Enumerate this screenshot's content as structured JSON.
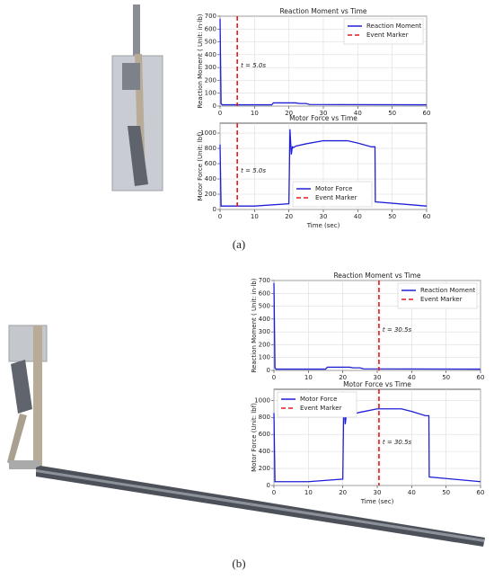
{
  "chart_data": [
    {
      "type": "line",
      "title": "Reaction Moment vs Time",
      "ylabel": "Reaction Moment ( Unit: in·lb)",
      "x": [
        0,
        0.3,
        0.6,
        15,
        15.5,
        22,
        23,
        25,
        26,
        60
      ],
      "series": [
        {
          "name": "Reaction Moment",
          "color": "#1f1fd6",
          "values": [
            680,
            20,
            10,
            10,
            25,
            25,
            20,
            20,
            12,
            10
          ]
        }
      ],
      "markers": [
        {
          "name": "Event Marker",
          "color": "#e41a1c",
          "x": 5.0,
          "annotation": "t = 5.0s"
        }
      ],
      "xlim": [
        0,
        60
      ],
      "xticks": [
        0,
        10,
        20,
        30,
        40,
        50,
        60
      ],
      "ylim": [
        0,
        700
      ],
      "yticks": [
        0,
        100,
        200,
        300,
        400,
        500,
        600,
        700
      ],
      "grid": true,
      "legend": "upper right"
    },
    {
      "type": "line",
      "title": "Motor Force vs Time",
      "xlabel": "Time (sec)",
      "ylabel": "Motor Force (Unit: lbf)",
      "x": [
        0,
        0.3,
        0.6,
        10,
        20,
        20.3,
        20.7,
        21,
        21.3,
        22,
        25,
        30,
        37,
        40,
        44,
        45,
        45.1,
        60
      ],
      "series": [
        {
          "name": "Motor Force",
          "color": "#1f1fd6",
          "values": [
            850,
            45,
            45,
            45,
            75,
            1050,
            720,
            820,
            810,
            830,
            860,
            900,
            900,
            870,
            820,
            820,
            100,
            45
          ]
        }
      ],
      "markers": [
        {
          "name": "Event Marker",
          "color": "#e41a1c",
          "x": 5.0,
          "annotation": "t = 5.0s"
        }
      ],
      "xlim": [
        0,
        60
      ],
      "xticks": [
        0,
        10,
        20,
        30,
        40,
        50,
        60
      ],
      "ylim": [
        0,
        1130
      ],
      "yticks": [
        0,
        200,
        400,
        600,
        800,
        1000
      ],
      "grid": true,
      "legend": "lower center"
    },
    {
      "type": "line",
      "title": "Reaction Moment vs Time",
      "ylabel": "Reaction Moment ( Unit: in·lb)",
      "x": [
        0,
        0.3,
        0.6,
        15,
        15.5,
        22,
        23,
        25,
        26,
        60
      ],
      "series": [
        {
          "name": "Reaction Moment",
          "color": "#1f1fd6",
          "values": [
            680,
            20,
            10,
            10,
            25,
            25,
            20,
            20,
            12,
            10
          ]
        }
      ],
      "markers": [
        {
          "name": "Event Marker",
          "color": "#e41a1c",
          "x": 30.5,
          "annotation": "t = 30.5s"
        }
      ],
      "xlim": [
        0,
        60
      ],
      "xticks": [
        0,
        10,
        20,
        30,
        40,
        50,
        60
      ],
      "ylim": [
        0,
        700
      ],
      "yticks": [
        0,
        100,
        200,
        300,
        400,
        500,
        600,
        700
      ],
      "grid": true,
      "legend": "upper right"
    },
    {
      "type": "line",
      "title": "Motor Force vs Time",
      "xlabel": "Time (sec)",
      "ylabel": "Motor Force (Unit: lbf)",
      "x": [
        0,
        0.3,
        0.6,
        10,
        20,
        20.3,
        20.7,
        21,
        21.3,
        22,
        25,
        30,
        37,
        40,
        44,
        45,
        45.1,
        60
      ],
      "series": [
        {
          "name": "Motor Force",
          "color": "#1f1fd6",
          "values": [
            850,
            45,
            45,
            45,
            75,
            1050,
            720,
            820,
            810,
            830,
            860,
            900,
            900,
            870,
            820,
            820,
            100,
            45
          ]
        }
      ],
      "markers": [
        {
          "name": "Event Marker",
          "color": "#e41a1c",
          "x": 30.5,
          "annotation": "t = 30.5s"
        }
      ],
      "xlim": [
        0,
        60
      ],
      "xticks": [
        0,
        10,
        20,
        30,
        40,
        50,
        60
      ],
      "ylim": [
        0,
        1130
      ],
      "yticks": [
        0,
        200,
        400,
        600,
        800,
        1000
      ],
      "grid": true,
      "legend": "upper left"
    }
  ],
  "captions": [
    "(a)",
    "(b)"
  ]
}
